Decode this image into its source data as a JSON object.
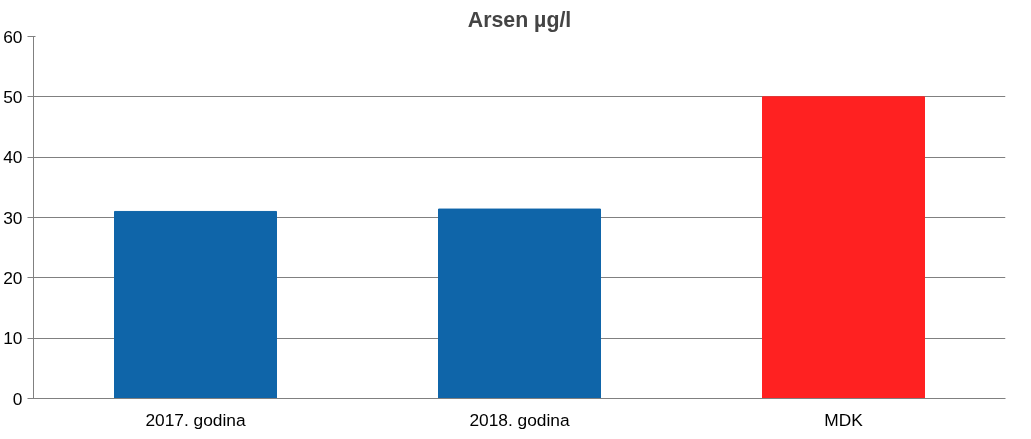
{
  "chart_data": {
    "type": "bar",
    "title": "Arsen µg/l",
    "categories": [
      "2017. godina",
      "2018. godina",
      "MDK"
    ],
    "values": [
      31,
      31.4,
      50
    ],
    "colors": [
      "#0f65a9",
      "#0f65a9",
      "#ff2121"
    ],
    "ylim": [
      0,
      60
    ],
    "yticks": [
      0,
      10,
      20,
      30,
      40,
      50,
      60
    ],
    "grid": "y"
  }
}
